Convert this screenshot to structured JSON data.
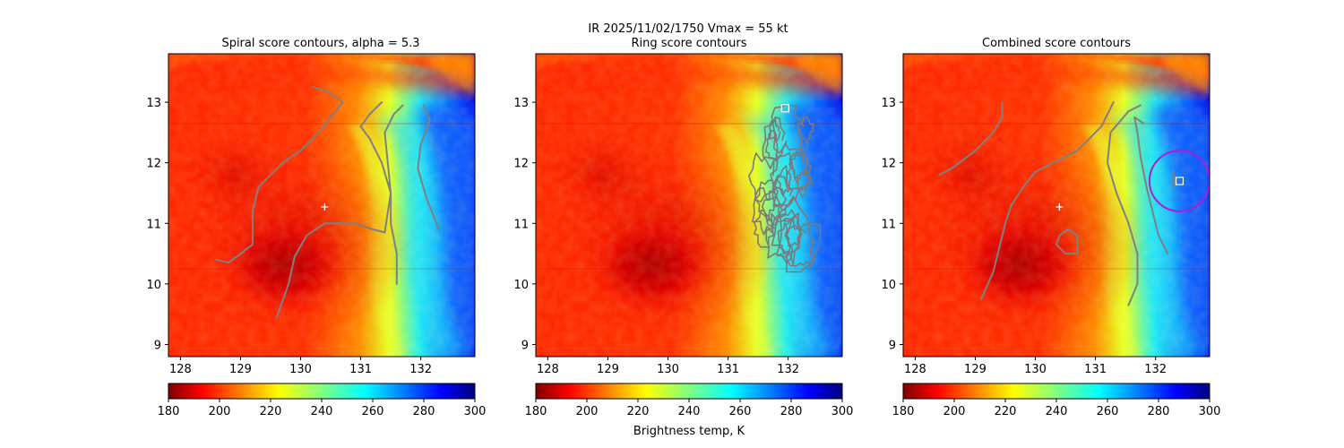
{
  "figure": {
    "suptitle_line1": "IR  2025/11/02/1750    Vmax = 55 kt",
    "colorbar_label": "Brightness temp, K"
  },
  "chart_data": [
    {
      "type": "heatmap",
      "title": "Spiral score contours, alpha =  5.3",
      "xlim": [
        127.8,
        132.9
      ],
      "ylim": [
        8.8,
        13.8
      ],
      "xticks": [
        128,
        129,
        130,
        131,
        132
      ],
      "yticks": [
        9,
        10,
        11,
        12,
        13
      ],
      "center_marker": {
        "lon": 130.4,
        "lat": 11.27,
        "symbol": "+"
      },
      "contours": [
        [
          [
            129.6,
            9.45
          ],
          [
            129.8,
            10.0
          ],
          [
            129.9,
            10.45
          ],
          [
            130.1,
            10.8
          ],
          [
            130.4,
            11.0
          ],
          [
            130.9,
            11.0
          ],
          [
            131.2,
            10.9
          ],
          [
            131.4,
            10.85
          ],
          [
            131.5,
            11.5
          ],
          [
            131.35,
            12.0
          ],
          [
            131.15,
            12.4
          ],
          [
            131.0,
            12.6
          ],
          [
            131.15,
            12.8
          ],
          [
            131.35,
            13.0
          ]
        ],
        [
          [
            128.6,
            10.4
          ],
          [
            128.8,
            10.35
          ],
          [
            129.0,
            10.5
          ],
          [
            129.2,
            10.65
          ],
          [
            129.2,
            11.2
          ],
          [
            129.3,
            11.6
          ],
          [
            129.5,
            11.8
          ],
          [
            129.7,
            12.0
          ],
          [
            130.0,
            12.2
          ],
          [
            130.3,
            12.5
          ],
          [
            130.5,
            12.75
          ],
          [
            130.7,
            13.0
          ],
          [
            130.4,
            13.2
          ],
          [
            130.2,
            13.25
          ]
        ],
        [
          [
            131.6,
            10.0
          ],
          [
            131.6,
            10.5
          ],
          [
            131.5,
            11.0
          ],
          [
            131.5,
            11.5
          ],
          [
            131.45,
            12.0
          ],
          [
            131.4,
            12.5
          ],
          [
            131.55,
            12.8
          ],
          [
            131.7,
            12.95
          ]
        ],
        [
          [
            132.3,
            10.9
          ],
          [
            132.1,
            11.4
          ],
          [
            131.95,
            11.9
          ],
          [
            132.0,
            12.3
          ],
          [
            132.15,
            12.7
          ],
          [
            132.05,
            12.95
          ]
        ]
      ],
      "colorbar": {
        "min": 180,
        "max": 300,
        "ticks": [
          180,
          200,
          220,
          240,
          260,
          280,
          300
        ],
        "colormap": "jet_r"
      }
    },
    {
      "type": "heatmap",
      "title": "Ring score contours",
      "xlim": [
        127.8,
        132.9
      ],
      "ylim": [
        8.8,
        13.8
      ],
      "xticks": [
        128,
        129,
        130,
        131,
        132
      ],
      "yticks": [
        9,
        10,
        11,
        12,
        13
      ],
      "ring_contour_cluster": {
        "lon_range": [
          131.3,
          132.6
        ],
        "lat_range": [
          10.2,
          12.95
        ]
      },
      "square_marker": {
        "lon": 131.95,
        "lat": 12.9
      },
      "colorbar": {
        "min": 180,
        "max": 300,
        "ticks": [
          180,
          200,
          220,
          240,
          260,
          280,
          300
        ],
        "colormap": "jet_r"
      }
    },
    {
      "type": "heatmap",
      "title": "Combined score contours",
      "xlim": [
        127.8,
        132.9
      ],
      "ylim": [
        8.8,
        13.8
      ],
      "xticks": [
        128,
        129,
        130,
        131,
        132
      ],
      "yticks": [
        9,
        10,
        11,
        12,
        13
      ],
      "center_marker": {
        "lon": 130.4,
        "lat": 11.27,
        "symbol": "+"
      },
      "square_marker": {
        "lon": 132.4,
        "lat": 11.7
      },
      "circle": {
        "lon": 132.4,
        "lat": 11.7,
        "radius_deg": 0.5,
        "color": "#b01cd2"
      },
      "contours": [
        [
          [
            129.1,
            9.75
          ],
          [
            129.3,
            10.2
          ],
          [
            129.4,
            10.6
          ],
          [
            129.5,
            11.0
          ],
          [
            129.6,
            11.3
          ],
          [
            129.8,
            11.6
          ],
          [
            130.0,
            11.85
          ],
          [
            130.3,
            12.0
          ],
          [
            130.7,
            12.2
          ],
          [
            131.1,
            12.6
          ],
          [
            131.3,
            13.0
          ]
        ],
        [
          [
            128.4,
            11.8
          ],
          [
            128.6,
            11.9
          ],
          [
            128.8,
            12.05
          ],
          [
            129.0,
            12.2
          ],
          [
            129.3,
            12.5
          ],
          [
            129.45,
            12.75
          ],
          [
            129.45,
            13.0
          ]
        ],
        [
          [
            131.55,
            9.65
          ],
          [
            131.7,
            10.0
          ],
          [
            131.7,
            10.5
          ],
          [
            131.55,
            11.0
          ],
          [
            131.35,
            11.5
          ],
          [
            131.2,
            12.0
          ],
          [
            131.25,
            12.5
          ],
          [
            131.55,
            12.85
          ],
          [
            131.75,
            12.95
          ]
        ],
        [
          [
            132.2,
            10.5
          ],
          [
            132.05,
            10.8
          ],
          [
            131.95,
            11.2
          ],
          [
            131.85,
            11.6
          ],
          [
            131.75,
            12.1
          ],
          [
            131.7,
            12.5
          ],
          [
            131.65,
            12.75
          ],
          [
            131.8,
            12.65
          ]
        ],
        [
          [
            132.3,
            11.6
          ],
          [
            132.3,
            11.85
          ]
        ]
      ],
      "closed_contours": [
        [
          [
            130.4,
            10.8
          ],
          [
            130.55,
            10.9
          ],
          [
            130.7,
            10.8
          ],
          [
            130.7,
            10.5
          ],
          [
            130.5,
            10.5
          ],
          [
            130.35,
            10.65
          ],
          [
            130.4,
            10.8
          ]
        ]
      ],
      "colorbar": {
        "min": 180,
        "max": 300,
        "ticks": [
          180,
          200,
          220,
          240,
          260,
          280,
          300
        ],
        "colormap": "jet_r"
      }
    }
  ]
}
